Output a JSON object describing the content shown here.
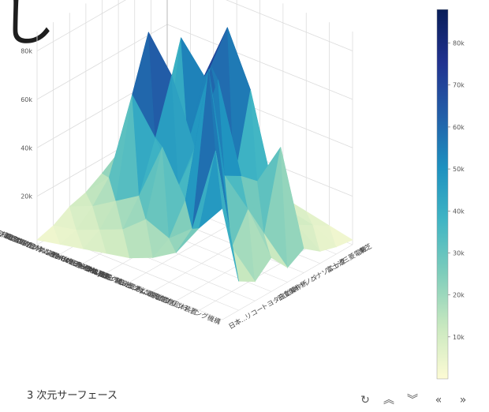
{
  "page": {
    "heading_glyph": "し",
    "caption": "3 次元サーフェース"
  },
  "toolbar": {
    "buttons": [
      {
        "name": "reset-button",
        "icon": "refresh-icon",
        "glyph": "↻"
      },
      {
        "name": "tilt-up-button",
        "icon": "chevron-up-icon",
        "glyph": "︽"
      },
      {
        "name": "tilt-down-button",
        "icon": "chevron-down-icon",
        "glyph": "︾"
      },
      {
        "name": "rotate-left-button",
        "icon": "double-chevron-left-icon",
        "glyph": "«"
      },
      {
        "name": "rotate-right-button",
        "icon": "double-chevron-right-icon",
        "glyph": "»"
      }
    ]
  },
  "chart_data": {
    "type": "surface",
    "title": "",
    "z_ticks": [
      "20k",
      "40k",
      "60k",
      "80k"
    ],
    "colorbar": {
      "ticks": [
        "10k",
        "20k",
        "30k",
        "40k",
        "50k",
        "60k",
        "70k",
        "80k"
      ],
      "min": 0,
      "max": 88000,
      "colors": [
        "#fdfbd4",
        "#c8e8bf",
        "#7ecdbb",
        "#40b5c4",
        "#1d91c0",
        "#225ea8",
        "#21328f",
        "#081d58"
      ]
    },
    "y_categories": [
      "東芝",
      "三菱電機",
      "富士通",
      "パナソニック",
      "キヤノン",
      "日立製作所",
      "トヨタ自動車",
      "リコー",
      "日本..."
    ],
    "x_categories": [
      "G02B 光学要素、系、または...",
      "G03B 写真を撮影するための...",
      "G06F 電気的デジタルデータ処理",
      "G06Q 管理目的に特に適合した...",
      "H04B 伝送",
      "H04N 画像通信、例．テレビジョン",
      "H04L デジタル情報の伝送、例...",
      "H01L 半導体装置、他に属さない...",
      "B41J タイプライタ；選択的プリンティング機構..."
    ],
    "x_tick_labels": [
      "G02B 光学要素、系、または装置",
      "G03B 写真を撮影するための装置",
      "G06F 電気的デジタルデータ処理",
      "G06Q 管理目的に特に適合したデータ処理",
      "H04B 伝送（4）",
      "H04N 画像通信、例．テレビジョン",
      "H04L デジタル情報の伝送、例．電信通信",
      "H01L 半導体装置、他に属さない電気的固体装置",
      "B41J タイプライタ；選択的プリンティング機構"
    ],
    "z": [
      [
        46000,
        12000,
        8000,
        14000,
        6000,
        10000,
        5000,
        3000,
        2000
      ],
      [
        34000,
        62000,
        18000,
        30000,
        16000,
        48000,
        12000,
        8000,
        4000
      ],
      [
        20000,
        26000,
        88000,
        40000,
        36000,
        30000,
        22000,
        10000,
        6000
      ],
      [
        14000,
        18000,
        30000,
        52000,
        72000,
        26000,
        60000,
        14000,
        8000
      ],
      [
        10000,
        22000,
        48000,
        28000,
        40000,
        70000,
        82000,
        30000,
        12000
      ],
      [
        8000,
        14000,
        24000,
        44000,
        66000,
        34000,
        58000,
        46000,
        10000
      ],
      [
        6000,
        10000,
        18000,
        58000,
        80000,
        22000,
        70000,
        24000,
        8000
      ],
      [
        4000,
        6000,
        12000,
        20000,
        30000,
        16000,
        26000,
        12000,
        5000
      ],
      [
        2000,
        4000,
        8000,
        10000,
        14000,
        8000,
        12000,
        6000,
        3000
      ]
    ]
  }
}
